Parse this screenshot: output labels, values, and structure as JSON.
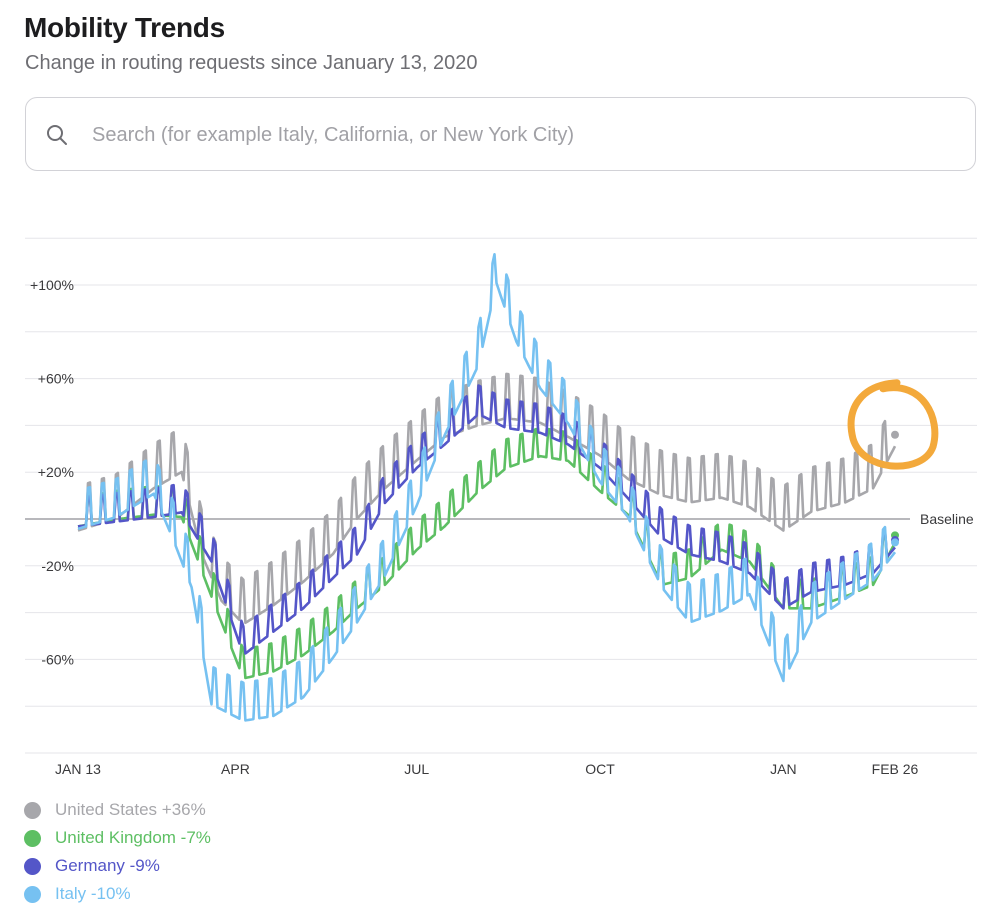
{
  "header": {
    "title": "Mobility Trends",
    "subtitle": "Change in routing requests since January 13, 2020"
  },
  "search": {
    "placeholder": "Search (for example Italy, California, or New York City)",
    "value": "",
    "icon": "search-icon"
  },
  "chart_data": {
    "type": "line",
    "ylabel": "",
    "xlabel": "",
    "baseline_label": "Baseline",
    "y_ticks": [
      "+100%",
      "+60%",
      "+20%",
      "-20%",
      "-60%"
    ],
    "y_tick_values": [
      100,
      60,
      20,
      -20,
      -60
    ],
    "ylim": [
      -100,
      120
    ],
    "x_ticks": [
      "JAN 13",
      "APR",
      "JUL",
      "OCT",
      "JAN",
      "FEB 26"
    ],
    "x_tick_values": [
      "2020-01-13",
      "2020-04-01",
      "2020-07-01",
      "2020-10-01",
      "2021-01-01",
      "2021-02-26"
    ],
    "xlim": [
      "2020-01-13",
      "2021-02-26"
    ],
    "grid": "horizontal",
    "series": [
      {
        "name": "United States",
        "legend": "United States +36%",
        "color": "#a7a7ab",
        "points": [
          [
            "2020-01-13",
            0
          ],
          [
            "2020-02-01",
            5
          ],
          [
            "2020-02-20",
            18
          ],
          [
            "2020-03-05",
            25
          ],
          [
            "2020-03-15",
            -10
          ],
          [
            "2020-03-25",
            -30
          ],
          [
            "2020-04-05",
            -40
          ],
          [
            "2020-04-20",
            -32
          ],
          [
            "2020-05-05",
            -22
          ],
          [
            "2020-05-20",
            -10
          ],
          [
            "2020-06-01",
            5
          ],
          [
            "2020-06-15",
            18
          ],
          [
            "2020-07-01",
            30
          ],
          [
            "2020-07-15",
            40
          ],
          [
            "2020-08-01",
            45
          ],
          [
            "2020-08-15",
            48
          ],
          [
            "2020-09-01",
            46
          ],
          [
            "2020-09-15",
            40
          ],
          [
            "2020-10-01",
            32
          ],
          [
            "2020-10-15",
            22
          ],
          [
            "2020-11-01",
            15
          ],
          [
            "2020-11-15",
            12
          ],
          [
            "2020-12-01",
            14
          ],
          [
            "2020-12-15",
            10
          ],
          [
            "2021-01-01",
            0
          ],
          [
            "2021-01-15",
            8
          ],
          [
            "2021-02-01",
            12
          ],
          [
            "2021-02-15",
            18
          ],
          [
            "2021-02-26",
            36
          ]
        ]
      },
      {
        "name": "United Kingdom",
        "legend": "United Kingdom -7%",
        "color": "#5dbf63",
        "points": [
          [
            "2020-01-13",
            0
          ],
          [
            "2020-02-01",
            3
          ],
          [
            "2020-02-20",
            5
          ],
          [
            "2020-03-05",
            4
          ],
          [
            "2020-03-20",
            -30
          ],
          [
            "2020-04-05",
            -65
          ],
          [
            "2020-04-20",
            -62
          ],
          [
            "2020-05-05",
            -55
          ],
          [
            "2020-05-20",
            -45
          ],
          [
            "2020-06-01",
            -35
          ],
          [
            "2020-06-15",
            -25
          ],
          [
            "2020-07-01",
            -10
          ],
          [
            "2020-07-15",
            0
          ],
          [
            "2020-08-01",
            15
          ],
          [
            "2020-08-15",
            25
          ],
          [
            "2020-09-01",
            30
          ],
          [
            "2020-09-15",
            28
          ],
          [
            "2020-10-01",
            15
          ],
          [
            "2020-10-15",
            5
          ],
          [
            "2020-11-01",
            -25
          ],
          [
            "2020-11-15",
            -22
          ],
          [
            "2020-12-01",
            -10
          ],
          [
            "2020-12-15",
            -15
          ],
          [
            "2021-01-01",
            -35
          ],
          [
            "2021-01-15",
            -35
          ],
          [
            "2021-02-01",
            -30
          ],
          [
            "2021-02-15",
            -25
          ],
          [
            "2021-02-26",
            -7
          ]
        ]
      },
      {
        "name": "Germany",
        "legend": "Germany -9%",
        "color": "#5456c8",
        "points": [
          [
            "2020-01-13",
            0
          ],
          [
            "2020-02-01",
            2
          ],
          [
            "2020-02-20",
            4
          ],
          [
            "2020-03-05",
            6
          ],
          [
            "2020-03-20",
            -15
          ],
          [
            "2020-04-05",
            -55
          ],
          [
            "2020-04-20",
            -45
          ],
          [
            "2020-05-05",
            -35
          ],
          [
            "2020-05-20",
            -22
          ],
          [
            "2020-06-01",
            -12
          ],
          [
            "2020-06-15",
            10
          ],
          [
            "2020-07-01",
            25
          ],
          [
            "2020-07-15",
            35
          ],
          [
            "2020-08-01",
            48
          ],
          [
            "2020-08-15",
            42
          ],
          [
            "2020-09-01",
            40
          ],
          [
            "2020-09-15",
            35
          ],
          [
            "2020-10-01",
            25
          ],
          [
            "2020-10-15",
            12
          ],
          [
            "2020-11-01",
            -5
          ],
          [
            "2020-11-15",
            -12
          ],
          [
            "2020-12-01",
            -15
          ],
          [
            "2020-12-15",
            -20
          ],
          [
            "2021-01-01",
            -35
          ],
          [
            "2021-01-15",
            -28
          ],
          [
            "2021-02-01",
            -25
          ],
          [
            "2021-02-15",
            -20
          ],
          [
            "2021-02-26",
            -9
          ]
        ]
      },
      {
        "name": "Italy",
        "legend": "Italy -10%",
        "color": "#76c1f1",
        "points": [
          [
            "2020-01-13",
            0
          ],
          [
            "2020-02-01",
            5
          ],
          [
            "2020-02-20",
            15
          ],
          [
            "2020-03-01",
            -5
          ],
          [
            "2020-03-10",
            -25
          ],
          [
            "2020-03-20",
            -75
          ],
          [
            "2020-04-05",
            -82
          ],
          [
            "2020-04-20",
            -80
          ],
          [
            "2020-05-05",
            -72
          ],
          [
            "2020-05-20",
            -55
          ],
          [
            "2020-06-01",
            -40
          ],
          [
            "2020-06-15",
            -20
          ],
          [
            "2020-07-01",
            10
          ],
          [
            "2020-07-15",
            40
          ],
          [
            "2020-08-01",
            70
          ],
          [
            "2020-08-10",
            105
          ],
          [
            "2020-08-20",
            80
          ],
          [
            "2020-09-01",
            60
          ],
          [
            "2020-09-15",
            45
          ],
          [
            "2020-10-01",
            20
          ],
          [
            "2020-10-15",
            5
          ],
          [
            "2020-11-01",
            -25
          ],
          [
            "2020-11-15",
            -40
          ],
          [
            "2020-12-01",
            -35
          ],
          [
            "2020-12-15",
            -28
          ],
          [
            "2021-01-01",
            -65
          ],
          [
            "2021-01-15",
            -40
          ],
          [
            "2021-02-01",
            -30
          ],
          [
            "2021-02-15",
            -22
          ],
          [
            "2021-02-26",
            -10
          ]
        ]
      }
    ]
  },
  "legend": [
    {
      "label": "United States +36%",
      "color": "#a7a7ab"
    },
    {
      "label": "United Kingdom -7%",
      "color": "#5dbf63"
    },
    {
      "label": "Germany -9%",
      "color": "#5456c8"
    },
    {
      "label": "Italy -10%",
      "color": "#76c1f1"
    }
  ],
  "annotation": {
    "shape": "circle",
    "color": "#f3a93b",
    "target": "United States endpoint"
  }
}
